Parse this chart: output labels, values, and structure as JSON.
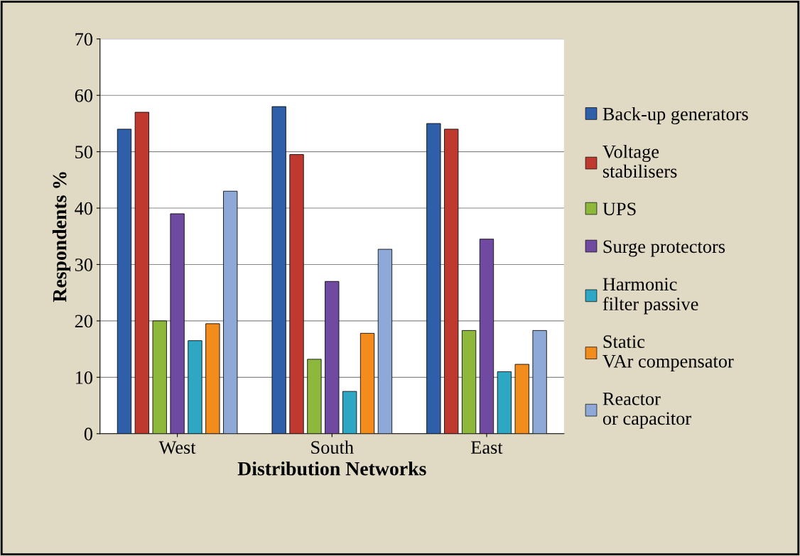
{
  "chart_data": {
    "type": "bar",
    "xlabel": "Distribution Networks",
    "ylabel": "Respondents %",
    "categories": [
      "West",
      "South",
      "East"
    ],
    "series": [
      {
        "name": "Back-up generators",
        "color": "#2e5fa8",
        "values": [
          54,
          58,
          55
        ]
      },
      {
        "name": "Voltage stabilisers",
        "color": "#c0392f",
        "values": [
          57,
          49.5,
          54
        ]
      },
      {
        "name": "UPS",
        "color": "#8db83c",
        "values": [
          20,
          13.2,
          18.3
        ]
      },
      {
        "name": "Surge protectors",
        "color": "#7049a0",
        "values": [
          39,
          27,
          34.5
        ]
      },
      {
        "name": "Harmonic filter passive",
        "color": "#2ea7c4",
        "values": [
          16.5,
          7.5,
          11
        ]
      },
      {
        "name": "Static VAr compensator",
        "color": "#f28c1d",
        "values": [
          19.5,
          17.8,
          12.3
        ]
      },
      {
        "name": "Reactor or capacitor",
        "color": "#8ea9d8",
        "values": [
          43,
          32.7,
          18.3
        ]
      }
    ],
    "ylim": [
      0,
      70
    ],
    "yticks": [
      0,
      10,
      20,
      30,
      40,
      50,
      60,
      70
    ],
    "grid": "y",
    "legend": "right"
  }
}
